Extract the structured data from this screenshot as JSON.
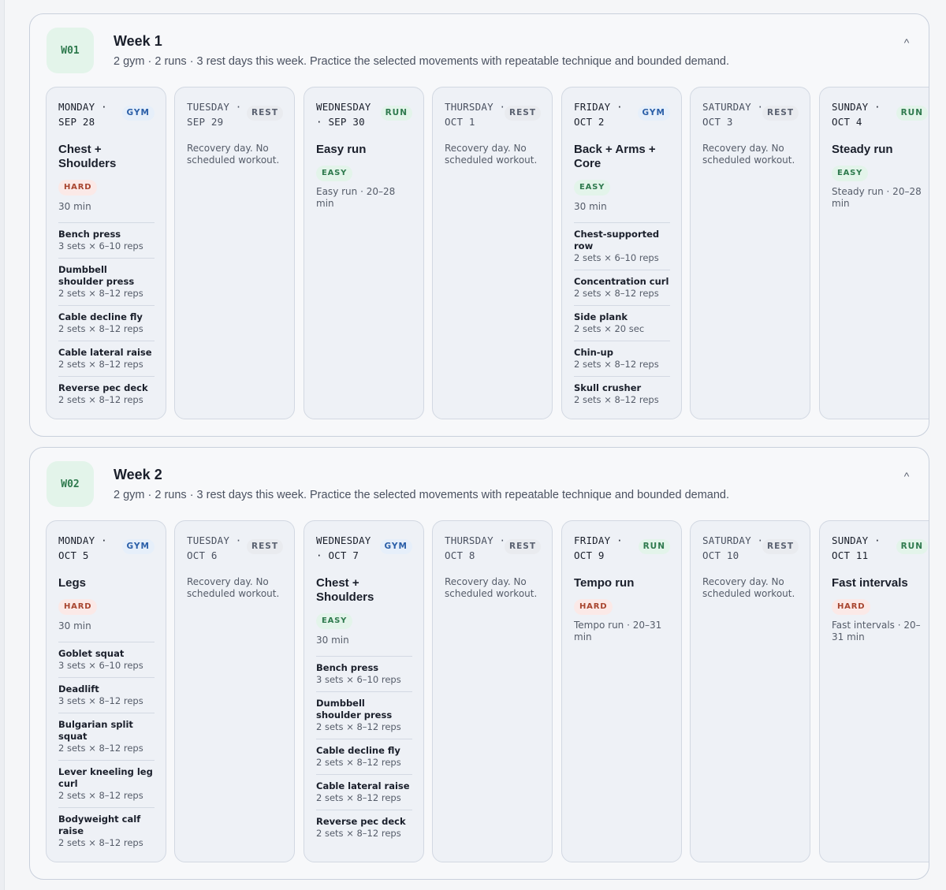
{
  "weeks": [
    {
      "code": "W01",
      "title": "Week 1",
      "summary": "2 gym · 2 runs · 3 rest days this week. Practice the selected movements with repeatable technique and bounded demand.",
      "collapse_icon": "^",
      "days": [
        {
          "date": "MONDAY · SEP 28",
          "type": "GYM",
          "title": "Chest + Shoulders",
          "intensity": "HARD",
          "duration": "30 min",
          "exercises": [
            {
              "name": "Bench press",
              "scheme": "3 sets × 6–10 reps"
            },
            {
              "name": "Dumbbell shoulder press",
              "scheme": "2 sets × 8–12 reps"
            },
            {
              "name": "Cable decline fly",
              "scheme": "2 sets × 8–12 reps"
            },
            {
              "name": "Cable lateral raise",
              "scheme": "2 sets × 8–12 reps"
            },
            {
              "name": "Reverse pec deck",
              "scheme": "2 sets × 8–12 reps"
            }
          ]
        },
        {
          "date": "TUESDAY · SEP 29",
          "type": "REST",
          "description": "Recovery day. No scheduled workout."
        },
        {
          "date": "WEDNESDAY · SEP 30",
          "type": "RUN",
          "title": "Easy run",
          "intensity": "EASY",
          "description": "Easy run · 20–28 min"
        },
        {
          "date": "THURSDAY · OCT 1",
          "type": "REST",
          "description": "Recovery day. No scheduled workout."
        },
        {
          "date": "FRIDAY · OCT 2",
          "type": "GYM",
          "title": "Back + Arms + Core",
          "intensity": "EASY",
          "duration": "30 min",
          "exercises": [
            {
              "name": "Chest-supported row",
              "scheme": "2 sets × 6–10 reps"
            },
            {
              "name": "Concentration curl",
              "scheme": "2 sets × 8–12 reps"
            },
            {
              "name": "Side plank",
              "scheme": "2 sets × 20 sec"
            },
            {
              "name": "Chin-up",
              "scheme": "2 sets × 8–12 reps"
            },
            {
              "name": "Skull crusher",
              "scheme": "2 sets × 8–12 reps"
            }
          ]
        },
        {
          "date": "SATURDAY · OCT 3",
          "type": "REST",
          "description": "Recovery day. No scheduled workout."
        },
        {
          "date": "SUNDAY · OCT 4",
          "type": "RUN",
          "title": "Steady run",
          "intensity": "EASY",
          "description": "Steady run · 20–28 min"
        }
      ]
    },
    {
      "code": "W02",
      "title": "Week 2",
      "summary": "2 gym · 2 runs · 3 rest days this week. Practice the selected movements with repeatable technique and bounded demand.",
      "collapse_icon": "^",
      "days": [
        {
          "date": "MONDAY · OCT 5",
          "type": "GYM",
          "title": "Legs",
          "intensity": "HARD",
          "duration": "30 min",
          "exercises": [
            {
              "name": "Goblet squat",
              "scheme": "3 sets × 6–10 reps"
            },
            {
              "name": "Deadlift",
              "scheme": "3 sets × 8–12 reps"
            },
            {
              "name": "Bulgarian split squat",
              "scheme": "2 sets × 8–12 reps"
            },
            {
              "name": "Lever kneeling leg curl",
              "scheme": "2 sets × 8–12 reps"
            },
            {
              "name": "Bodyweight calf raise",
              "scheme": "2 sets × 8–12 reps"
            }
          ]
        },
        {
          "date": "TUESDAY · OCT 6",
          "type": "REST",
          "description": "Recovery day. No scheduled workout."
        },
        {
          "date": "WEDNESDAY · OCT 7",
          "type": "GYM",
          "title": "Chest + Shoulders",
          "intensity": "EASY",
          "duration": "30 min",
          "exercises": [
            {
              "name": "Bench press",
              "scheme": "3 sets × 6–10 reps"
            },
            {
              "name": "Dumbbell shoulder press",
              "scheme": "2 sets × 8–12 reps"
            },
            {
              "name": "Cable decline fly",
              "scheme": "2 sets × 8–12 reps"
            },
            {
              "name": "Cable lateral raise",
              "scheme": "2 sets × 8–12 reps"
            },
            {
              "name": "Reverse pec deck",
              "scheme": "2 sets × 8–12 reps"
            }
          ]
        },
        {
          "date": "THURSDAY · OCT 8",
          "type": "REST",
          "description": "Recovery day. No scheduled workout."
        },
        {
          "date": "FRIDAY · OCT 9",
          "type": "RUN",
          "title": "Tempo run",
          "intensity": "HARD",
          "description": "Tempo run · 20–31 min"
        },
        {
          "date": "SATURDAY · OCT 10",
          "type": "REST",
          "description": "Recovery day. No scheduled workout."
        },
        {
          "date": "SUNDAY · OCT 11",
          "type": "RUN",
          "title": "Fast intervals",
          "intensity": "HARD",
          "description": "Fast intervals · 20–31 min"
        }
      ]
    }
  ]
}
